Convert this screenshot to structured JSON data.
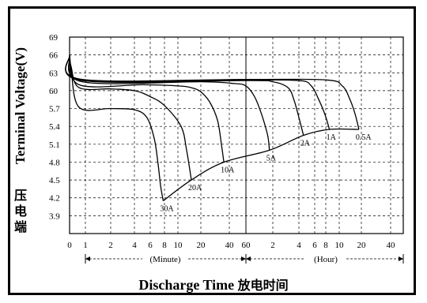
{
  "chart_data": {
    "type": "line",
    "title": "",
    "ylabel": "Terminal Voltage(V)",
    "ylabel_cjk": "压电端",
    "xlabel": "Discharge Time",
    "xlabel_cjk": "放电时间",
    "yticks": [
      "69",
      "66",
      "63",
      "60",
      "5.7",
      "5.4",
      "5.1",
      "4.8",
      "4.5",
      "4.2",
      "3.9"
    ],
    "xticks": [
      "0",
      "1",
      "2",
      "4",
      "6",
      "8",
      "10",
      "20",
      "40",
      "60",
      "2",
      "4",
      "6",
      "8",
      "10",
      "20",
      "40"
    ],
    "x_units": [
      "(Minute)",
      "(Hour)"
    ],
    "grid": true,
    "series": [
      {
        "name": "30A",
        "points": [
          [
            0,
            6.6
          ],
          [
            0.1,
            6.35
          ],
          [
            0.6,
            5.72
          ],
          [
            2,
            5.7
          ],
          [
            4,
            5.68
          ],
          [
            5.5,
            5.55
          ],
          [
            6.5,
            5.2
          ],
          [
            7,
            4.8
          ],
          [
            7.4,
            4.4
          ],
          [
            7.8,
            4.15
          ]
        ]
      },
      {
        "name": "20A",
        "points": [
          [
            0,
            6.6
          ],
          [
            0.1,
            6.4
          ],
          [
            0.6,
            6.05
          ],
          [
            2,
            6.03
          ],
          [
            4,
            6.0
          ],
          [
            6,
            5.9
          ],
          [
            8,
            5.75
          ],
          [
            11,
            5.4
          ],
          [
            13,
            5.0
          ],
          [
            15,
            4.5
          ]
        ]
      },
      {
        "name": "10A",
        "points": [
          [
            0,
            6.6
          ],
          [
            0.6,
            6.1
          ],
          [
            5,
            6.1
          ],
          [
            10,
            6.08
          ],
          [
            15,
            6.05
          ],
          [
            20,
            5.98
          ],
          [
            25,
            5.8
          ],
          [
            30,
            5.5
          ],
          [
            33,
            5.1
          ],
          [
            35,
            4.8
          ]
        ]
      },
      {
        "name": "5A",
        "points": [
          [
            0,
            6.6
          ],
          [
            0.8,
            6.15
          ],
          [
            20,
            6.15
          ],
          [
            45,
            6.12
          ],
          [
            60,
            6.08
          ],
          [
            75,
            5.9
          ],
          [
            90,
            5.6
          ],
          [
            105,
            5.25
          ],
          [
            110,
            5.0
          ]
        ]
      },
      {
        "name": "2A",
        "points": [
          [
            0,
            6.6
          ],
          [
            0.8,
            6.17
          ],
          [
            60,
            6.17
          ],
          [
            120,
            6.15
          ],
          [
            180,
            6.05
          ],
          [
            210,
            5.85
          ],
          [
            240,
            5.55
          ],
          [
            270,
            5.25
          ]
        ]
      },
      {
        "name": "1A",
        "points": [
          [
            0,
            6.6
          ],
          [
            0.8,
            6.18
          ],
          [
            60,
            6.18
          ],
          [
            240,
            6.17
          ],
          [
            330,
            6.08
          ],
          [
            400,
            5.85
          ],
          [
            470,
            5.6
          ],
          [
            510,
            5.35
          ]
        ]
      },
      {
        "name": "0.5A",
        "points": [
          [
            0,
            6.6
          ],
          [
            0.8,
            6.19
          ],
          [
            60,
            6.19
          ],
          [
            480,
            6.18
          ],
          [
            660,
            6.08
          ],
          [
            840,
            5.85
          ],
          [
            990,
            5.6
          ],
          [
            1110,
            5.35
          ]
        ]
      }
    ],
    "endpoint_curve": [
      [
        7.8,
        4.15
      ],
      [
        15,
        4.5
      ],
      [
        35,
        4.8
      ],
      [
        110,
        5.0
      ],
      [
        270,
        5.25
      ],
      [
        510,
        5.35
      ],
      [
        1110,
        5.35
      ]
    ]
  }
}
